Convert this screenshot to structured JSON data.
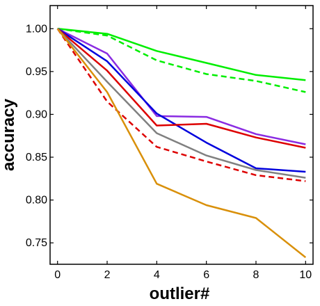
{
  "chart_data": {
    "type": "line",
    "title": "",
    "xlabel": "outlier#",
    "ylabel": "accuracy",
    "xlim": [
      -0.3,
      10.3
    ],
    "ylim": [
      0.725,
      1.027
    ],
    "x_ticks": [
      0,
      2,
      4,
      6,
      8,
      10
    ],
    "y_ticks": [
      0.75,
      0.8,
      0.85,
      0.9,
      0.95,
      1.0
    ],
    "x_tick_labels": [
      "0",
      "2",
      "4",
      "6",
      "8",
      "10"
    ],
    "y_tick_labels": [
      "0.75",
      "0.80",
      "0.85",
      "0.90",
      "0.95",
      "1.00"
    ],
    "grid": false,
    "legend": "none",
    "x": [
      0,
      2,
      4,
      6,
      8,
      10
    ],
    "series": [
      {
        "color": "#00ee00",
        "dash": "solid",
        "values": [
          1.0,
          0.994,
          0.974,
          0.96,
          0.946,
          0.94
        ]
      },
      {
        "color": "#00ee00",
        "dash": "dashed",
        "values": [
          1.0,
          0.992,
          0.963,
          0.947,
          0.939,
          0.926
        ]
      },
      {
        "color": "#8a2be2",
        "dash": "solid",
        "values": [
          1.0,
          0.971,
          0.898,
          0.897,
          0.877,
          0.865
        ]
      },
      {
        "color": "#0000dd",
        "dash": "solid",
        "values": [
          1.0,
          0.962,
          0.901,
          0.867,
          0.837,
          0.833
        ]
      },
      {
        "color": "#dd0000",
        "dash": "solid",
        "values": [
          1.0,
          0.951,
          0.887,
          0.889,
          0.873,
          0.861
        ]
      },
      {
        "color": "#dd0000",
        "dash": "dashed",
        "values": [
          1.0,
          0.915,
          0.862,
          0.845,
          0.829,
          0.822
        ]
      },
      {
        "color": "#808080",
        "dash": "solid",
        "values": [
          1.0,
          0.938,
          0.878,
          0.852,
          0.835,
          0.826
        ]
      },
      {
        "color": "#d9900a",
        "dash": "solid",
        "values": [
          1.0,
          0.926,
          0.819,
          0.794,
          0.779,
          0.733
        ]
      }
    ]
  }
}
